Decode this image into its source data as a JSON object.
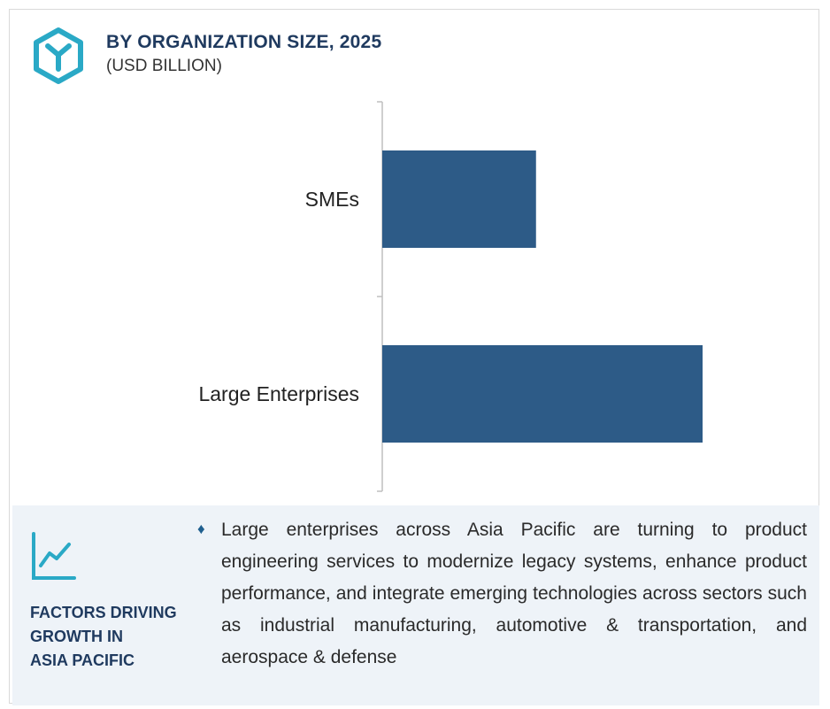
{
  "header": {
    "title": "BY ORGANIZATION SIZE, 2025",
    "subtitle": "(USD BILLION)",
    "logo_icon": "hexagon-y-logo-icon",
    "accent_color": "#2aa9c6",
    "title_color": "#1f3a5f"
  },
  "chart_data": {
    "type": "bar",
    "orientation": "horizontal",
    "title": "BY ORGANIZATION SIZE, 2025",
    "subtitle": "(USD BILLION)",
    "categories": [
      "SMEs",
      "Large Enterprises"
    ],
    "values": [
      48,
      100
    ],
    "value_scale": "relative (no axis ticks shown)",
    "xlim": [
      0,
      100
    ],
    "bar_color": "#2d5b87",
    "grid": false,
    "legend": "none"
  },
  "factors": {
    "icon": "trend-line-chart-icon",
    "title": "FACTORS DRIVING\nGROWTH IN\nASIA PACIFIC",
    "bullet_icon": "diamond-bullet-icon",
    "bullet": "Large enterprises across Asia Pacific are turning to product engineering services to modernize legacy systems, enhance product performance, and integrate emerging technologies across sectors such as industrial manufacturing, automotive & transportation, and aerospace & defense",
    "background_color": "#eef3f8"
  }
}
